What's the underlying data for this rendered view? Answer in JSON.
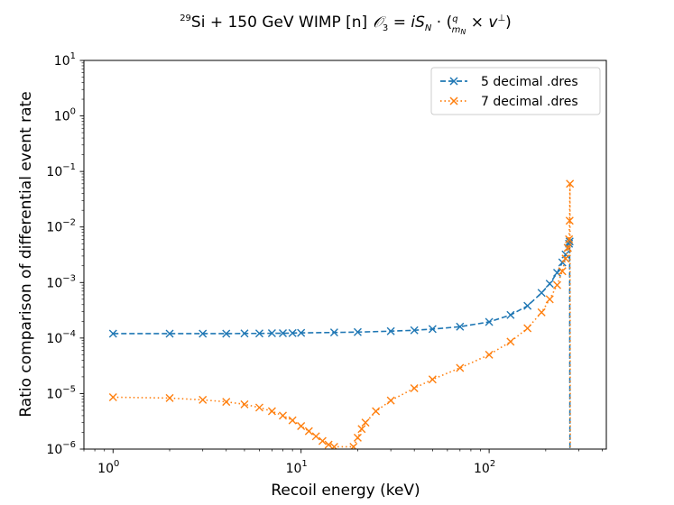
{
  "chart_data": {
    "type": "line",
    "title": "29Si + 150 GeV WIMP [n] O3 = i S_N · (q/m_N × v⊥)",
    "title_parts": {
      "isotope_mass": "29",
      "text": "Si + 150 GeV WIMP [n]",
      "operator": "𝒪",
      "operator_sub": "3",
      "eq": " = ",
      "i": "i",
      "spin": "S",
      "spin_sub": "N",
      "dot": " · (",
      "q": "q",
      "m": "m",
      "m_sub": "N",
      "times": " × ",
      "v": "v",
      "perp": "⊥",
      "close": ")"
    },
    "xlabel": "Recoil energy (keV)",
    "ylabel": "Ratio comparison of differential event rate",
    "xscale": "log",
    "yscale": "log",
    "xlim": [
      0.7,
      420
    ],
    "ylim": [
      1e-06,
      10
    ],
    "xticks": [
      {
        "value": 1,
        "base": "10",
        "exp": "0"
      },
      {
        "value": 10,
        "base": "10",
        "exp": "1"
      },
      {
        "value": 100,
        "base": "10",
        "exp": "2"
      }
    ],
    "yticks": [
      {
        "value": 1e-06,
        "base": "10",
        "exp": "−6"
      },
      {
        "value": 1e-05,
        "base": "10",
        "exp": "−5"
      },
      {
        "value": 0.0001,
        "base": "10",
        "exp": "−4"
      },
      {
        "value": 0.001,
        "base": "10",
        "exp": "−3"
      },
      {
        "value": 0.01,
        "base": "10",
        "exp": "−2"
      },
      {
        "value": 0.1,
        "base": "10",
        "exp": "−1"
      },
      {
        "value": 1,
        "base": "10",
        "exp": "0"
      },
      {
        "value": 10,
        "base": "10",
        "exp": "1"
      }
    ],
    "legend_position": "top-right",
    "series": [
      {
        "name": "5 decimal .dres",
        "color": "#1f77b4",
        "linestyle": "dashed",
        "marker": "x",
        "x": [
          1,
          2,
          3,
          4,
          5,
          6,
          7,
          8,
          9,
          10,
          15,
          20,
          30,
          40,
          50,
          70,
          100,
          130,
          160,
          190,
          210,
          230,
          245,
          255,
          262,
          266,
          268,
          269
        ],
        "y": [
          0.00012,
          0.00012,
          0.00012,
          0.00012,
          0.000121,
          0.000121,
          0.000122,
          0.000122,
          0.000123,
          0.000124,
          0.000126,
          0.000128,
          0.000133,
          0.000138,
          0.000145,
          0.00016,
          0.000195,
          0.00026,
          0.00038,
          0.00065,
          0.00095,
          0.0015,
          0.0023,
          0.0032,
          0.0042,
          0.005,
          0.0055,
          1e-06
        ]
      },
      {
        "name": "7 decimal .dres",
        "color": "#ff7f0e",
        "linestyle": "dotted",
        "marker": "x",
        "x": [
          1,
          2,
          3,
          4,
          5,
          6,
          7,
          8,
          9,
          10,
          11,
          12,
          13,
          14,
          15,
          19,
          20,
          21,
          22,
          25,
          30,
          40,
          50,
          70,
          100,
          130,
          160,
          190,
          210,
          230,
          245,
          255,
          262,
          266,
          268,
          269,
          270
        ],
        "y": [
          8.6e-06,
          8.3e-06,
          7.7e-06,
          7.1e-06,
          6.4e-06,
          5.6e-06,
          4.8e-06,
          4e-06,
          3.3e-06,
          2.6e-06,
          2.1e-06,
          1.7e-06,
          1.4e-06,
          1.2e-06,
          1.1e-06,
          1.1e-06,
          1.6e-06,
          2.3e-06,
          3e-06,
          4.8e-06,
          7.5e-06,
          1.25e-05,
          1.8e-05,
          2.9e-05,
          5e-05,
          8.6e-05,
          0.00015,
          0.00029,
          0.0005,
          0.0009,
          0.0016,
          0.0027,
          0.0042,
          0.006,
          0.013,
          0.06,
          1e-06
        ]
      }
    ]
  }
}
